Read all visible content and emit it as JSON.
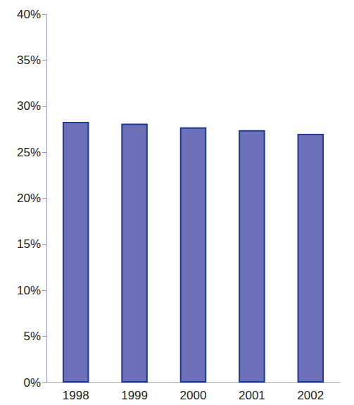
{
  "chart_data": {
    "type": "bar",
    "categories": [
      "1998",
      "1999",
      "2000",
      "2001",
      "2002"
    ],
    "values": [
      28.3,
      28.1,
      27.7,
      27.4,
      27.0
    ],
    "color": "#6b70b8",
    "ylim": [
      0,
      40
    ],
    "yticks": [
      {
        "value": 0,
        "label": "0%"
      },
      {
        "value": 5,
        "label": "5%"
      },
      {
        "value": 10,
        "label": "10%"
      },
      {
        "value": 15,
        "label": "15%"
      },
      {
        "value": 20,
        "label": "20%"
      },
      {
        "value": 25,
        "label": "25%"
      },
      {
        "value": 30,
        "label": "30%"
      },
      {
        "value": 35,
        "label": "35%"
      },
      {
        "value": 40,
        "label": "40%"
      }
    ],
    "grid": false
  }
}
